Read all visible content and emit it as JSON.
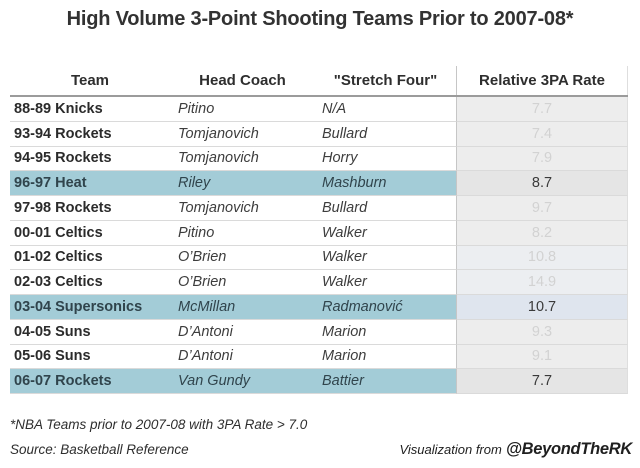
{
  "title": "High Volume 3-Point Shooting Teams Prior to 2007-08*",
  "chart_data": {
    "type": "table",
    "title": "High Volume 3-Point Shooting Teams Prior to 2007-08*",
    "columns": [
      "Team",
      "Head Coach",
      "\"Stretch Four\"",
      "Relative 3PA Rate"
    ],
    "rows": [
      {
        "team": "88-89 Knicks",
        "head_coach": "Pitino",
        "stretch_four": "N/A",
        "relative_3pa_rate": 7.7,
        "highlighted": false,
        "rate_bg": "#ededed"
      },
      {
        "team": "93-94 Rockets",
        "head_coach": "Tomjanovich",
        "stretch_four": "Bullard",
        "relative_3pa_rate": 7.4,
        "highlighted": false,
        "rate_bg": "#ededed"
      },
      {
        "team": "94-95 Rockets",
        "head_coach": "Tomjanovich",
        "stretch_four": "Horry",
        "relative_3pa_rate": 7.9,
        "highlighted": false,
        "rate_bg": "#ededed"
      },
      {
        "team": "96-97 Heat",
        "head_coach": "Riley",
        "stretch_four": "Mashburn",
        "relative_3pa_rate": 8.7,
        "highlighted": true,
        "rate_bg": "#e5e5e5"
      },
      {
        "team": "97-98 Rockets",
        "head_coach": "Tomjanovich",
        "stretch_four": "Bullard",
        "relative_3pa_rate": 9.7,
        "highlighted": false,
        "rate_bg": "#ededed"
      },
      {
        "team": "00-01 Celtics",
        "head_coach": "Pitino",
        "stretch_four": "Walker",
        "relative_3pa_rate": 8.2,
        "highlighted": false,
        "rate_bg": "#ededed"
      },
      {
        "team": "01-02 Celtics",
        "head_coach": "O’Brien",
        "stretch_four": "Walker",
        "relative_3pa_rate": 10.8,
        "highlighted": false,
        "rate_bg": "#eceef1"
      },
      {
        "team": "02-03 Celtics",
        "head_coach": "O’Brien",
        "stretch_four": "Walker",
        "relative_3pa_rate": 14.9,
        "highlighted": false,
        "rate_bg": "#eceef1"
      },
      {
        "team": "03-04 Supersonics",
        "head_coach": "McMillan",
        "stretch_four": "Radmanović",
        "relative_3pa_rate": 10.7,
        "highlighted": true,
        "rate_bg": "#dfe5ee"
      },
      {
        "team": "04-05 Suns",
        "head_coach": "D’Antoni",
        "stretch_four": "Marion",
        "relative_3pa_rate": 9.3,
        "highlighted": false,
        "rate_bg": "#ededed"
      },
      {
        "team": "05-06 Suns",
        "head_coach": "D’Antoni",
        "stretch_four": "Marion",
        "relative_3pa_rate": 9.1,
        "highlighted": false,
        "rate_bg": "#ededed"
      },
      {
        "team": "06-07 Rockets",
        "head_coach": "Van Gundy",
        "stretch_four": "Battier",
        "relative_3pa_rate": 7.7,
        "highlighted": true,
        "rate_bg": "#e5e5e5"
      }
    ]
  },
  "footnotes": {
    "note": "*NBA Teams prior to 2007-08 with 3PA Rate > 7.0",
    "source": "Source: Basketball Reference",
    "attribution_prefix": "Visualization from",
    "attribution_handle": "@BeyondTheRK"
  },
  "colors": {
    "highlight": "#a3ccd7",
    "highlight_text": "#30444c",
    "rate_bg_default": "#ededed",
    "rate_text_muted": "#d2d2d2",
    "rate_text_active": "#3a3a3a"
  }
}
